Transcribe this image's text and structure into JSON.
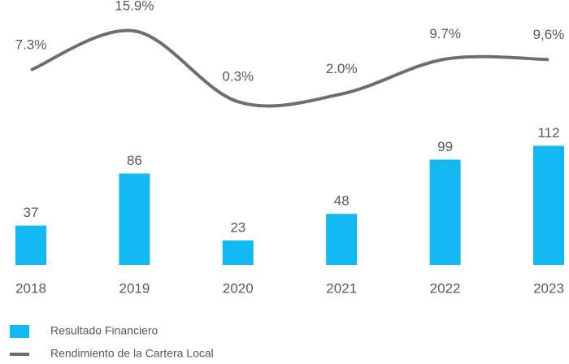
{
  "chart_data": {
    "type": "bar-line",
    "categories": [
      "2018",
      "2019",
      "2020",
      "2021",
      "2022",
      "2023"
    ],
    "series": [
      {
        "name": "Resultado Financiero",
        "type": "bar",
        "color": "#12b8f2",
        "values": [
          37,
          86,
          23,
          48,
          99,
          112
        ]
      },
      {
        "name": "Rendimiento de la Cartera Local",
        "type": "line",
        "axis": "y2",
        "color": "#6e6e6e",
        "values": [
          7.3,
          15.9,
          0.3,
          2.0,
          9.7,
          9.6
        ],
        "value_labels": [
          "7.3%",
          "15.9%",
          "0.3%",
          "2.0%",
          "9.7%",
          "9,6%"
        ]
      }
    ],
    "ylim": [
      0,
      120
    ],
    "y2lim": [
      -2,
      17
    ]
  }
}
